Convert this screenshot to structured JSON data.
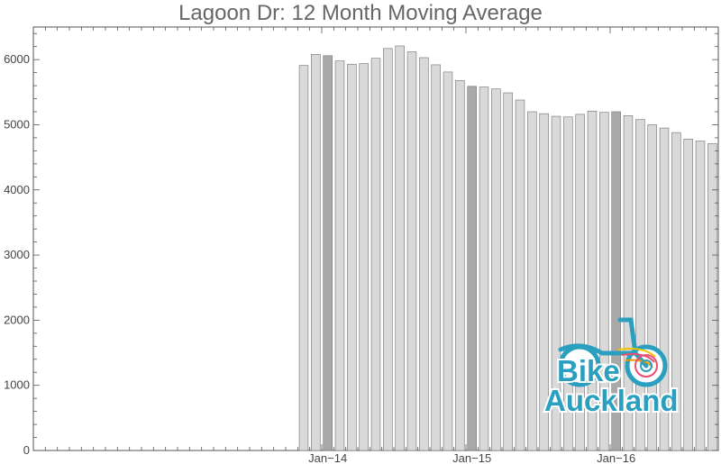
{
  "chart_data": {
    "type": "bar",
    "title": "Lagoon Dr: 12 Month Moving Average",
    "xlabel": "",
    "ylabel": "",
    "ylim": [
      0,
      6500
    ],
    "yticks": [
      0,
      1000,
      2000,
      3000,
      4000,
      5000,
      6000
    ],
    "x_tick_labels": [
      {
        "label": "Jan−14",
        "category": "Jan-14"
      },
      {
        "label": "Jan−15",
        "category": "Jan-15"
      },
      {
        "label": "Jan−16",
        "category": "Jan-16"
      }
    ],
    "grid": false,
    "legend": "none",
    "categories": [
      "Nov-13",
      "Dec-13",
      "Jan-14",
      "Feb-14",
      "Mar-14",
      "Apr-14",
      "May-14",
      "Jun-14",
      "Jul-14",
      "Aug-14",
      "Sep-14",
      "Oct-14",
      "Nov-14",
      "Dec-14",
      "Jan-15",
      "Feb-15",
      "Mar-15",
      "Apr-15",
      "May-15",
      "Jun-15",
      "Jul-15",
      "Aug-15",
      "Sep-15",
      "Oct-15",
      "Nov-15",
      "Dec-15",
      "Jan-16",
      "Feb-16",
      "Mar-16",
      "Apr-16",
      "May-16",
      "Jun-16",
      "Jul-16",
      "Aug-16",
      "Sep-16"
    ],
    "values": [
      5910,
      6080,
      6060,
      5980,
      5930,
      5940,
      6020,
      6170,
      6210,
      6120,
      6030,
      5920,
      5810,
      5680,
      5590,
      5580,
      5550,
      5490,
      5380,
      5200,
      5170,
      5130,
      5120,
      5160,
      5210,
      5190,
      5200,
      5140,
      5080,
      5000,
      4950,
      4880,
      4780,
      4750,
      4710
    ],
    "highlighted": [
      "Jan-14",
      "Jan-15",
      "Jan-16"
    ],
    "colors": {
      "bar": "#d9d9d9",
      "bar_highlight": "#a9a9a9",
      "bar_stroke": "#707070",
      "axis": "#555555"
    }
  },
  "logo": {
    "text_line1": "Bike",
    "text_line2": "Auckland",
    "color": "#2b9fbf"
  }
}
